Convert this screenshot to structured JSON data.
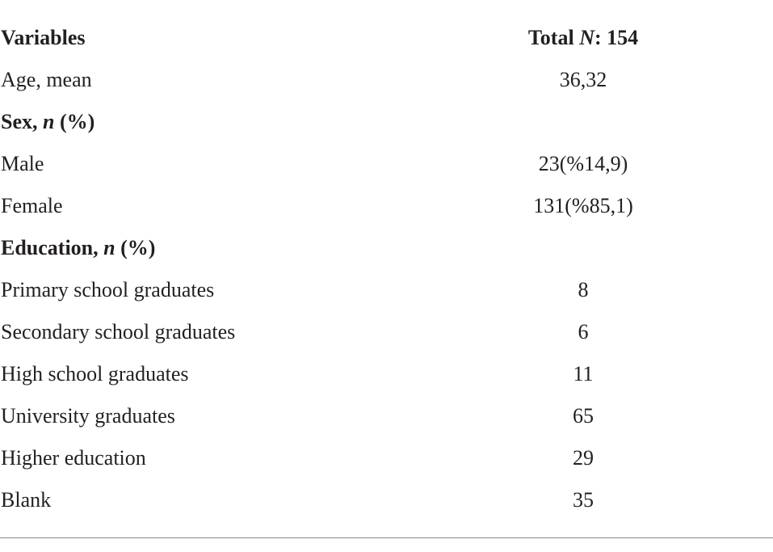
{
  "table": {
    "header": {
      "label": "Variables",
      "value": [
        "Total ",
        "N",
        ": 154"
      ]
    },
    "rows": [
      {
        "label": "Age, mean",
        "value": "36,32"
      },
      {
        "section": [
          "Sex, ",
          "n",
          " (%)"
        ]
      },
      {
        "label": "Male",
        "value": "23(%14,9)"
      },
      {
        "label": "Female",
        "value": "131(%85,1)"
      },
      {
        "section": [
          "Education, ",
          "n",
          " (%)"
        ]
      },
      {
        "label": "Primary school graduates",
        "value": 8
      },
      {
        "label": "Secondary school graduates",
        "value": 6
      },
      {
        "label": "High school graduates",
        "value": 11
      },
      {
        "label": "University graduates",
        "value": 65
      },
      {
        "label": "Higher education",
        "value": 29
      },
      {
        "label": "Blank",
        "value": 35
      }
    ]
  }
}
